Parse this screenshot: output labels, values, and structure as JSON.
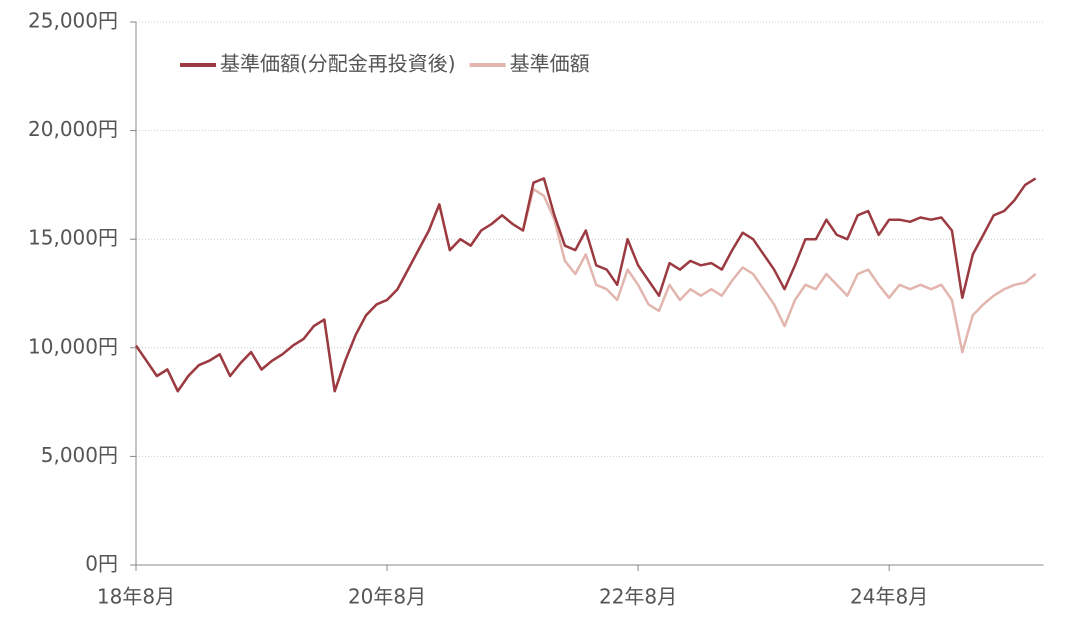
{
  "chart_data": {
    "type": "line",
    "categories": [
      "18年8月",
      null,
      null,
      null,
      null,
      null,
      null,
      null,
      null,
      null,
      null,
      null,
      null,
      null,
      null,
      null,
      null,
      null,
      null,
      null,
      null,
      null,
      null,
      null,
      "20年8月",
      null,
      null,
      null,
      null,
      null,
      null,
      null,
      null,
      null,
      null,
      null,
      null,
      null,
      null,
      null,
      null,
      null,
      null,
      null,
      null,
      null,
      null,
      null,
      "22年8月",
      null,
      null,
      null,
      null,
      null,
      null,
      null,
      null,
      null,
      null,
      null,
      null,
      null,
      null,
      null,
      null,
      null,
      null,
      null,
      null,
      null,
      null,
      null,
      "24年8月",
      null,
      null,
      null,
      null,
      null,
      null,
      null,
      null,
      null,
      null,
      null,
      null,
      null,
      null
    ],
    "series": [
      {
        "name": "基準価額(分配金再投資後)",
        "color": "#9b3a40",
        "values": [
          10100,
          9400,
          8700,
          9000,
          8000,
          8700,
          9200,
          9400,
          9700,
          8700,
          9300,
          9800,
          9000,
          9400,
          9700,
          10100,
          10400,
          11000,
          11300,
          8000,
          9400,
          10600,
          11500,
          12000,
          12200,
          12700,
          13600,
          14500,
          15400,
          16600,
          14500,
          15000,
          14700,
          15400,
          15700,
          16100,
          15700,
          15400,
          17600,
          17800,
          16100,
          14700,
          14500,
          15400,
          13800,
          13600,
          12900,
          15000,
          13800,
          13100,
          12400,
          13900,
          13600,
          14000,
          13800,
          13900,
          13600,
          14500,
          15300,
          15000,
          14300,
          13600,
          12700,
          13800,
          15000,
          15000,
          15900,
          15200,
          15000,
          16100,
          16300,
          15200,
          15900,
          15900,
          15800,
          16000,
          15900,
          16000,
          15400,
          12300,
          14300,
          15200,
          16100,
          16300,
          16800,
          17500,
          17800
        ]
      },
      {
        "name": "基準価額",
        "color": "#e2b6ae",
        "values": [
          10100,
          9400,
          8700,
          9000,
          8000,
          8700,
          9200,
          9400,
          9700,
          8700,
          9300,
          9800,
          9000,
          9400,
          9700,
          10100,
          10400,
          11000,
          11300,
          8000,
          9400,
          10600,
          11500,
          12000,
          12200,
          12700,
          13600,
          14500,
          15400,
          16600,
          14500,
          15000,
          14700,
          15400,
          15700,
          16100,
          15700,
          15400,
          17300,
          17000,
          15900,
          14000,
          13400,
          14300,
          12900,
          12700,
          12200,
          13600,
          12900,
          12000,
          11700,
          12900,
          12200,
          12700,
          12400,
          12700,
          12400,
          13100,
          13700,
          13400,
          12700,
          12000,
          11000,
          12200,
          12900,
          12700,
          13400,
          12900,
          12400,
          13400,
          13600,
          12900,
          12300,
          12900,
          12700,
          12900,
          12700,
          12900,
          12200,
          9800,
          11500,
          12000,
          12400,
          12700,
          12900,
          13000,
          13400
        ]
      }
    ],
    "ylim": [
      0,
      25000
    ],
    "yticks": [
      {
        "value": 0,
        "label": "0円"
      },
      {
        "value": 5000,
        "label": "5,000円"
      },
      {
        "value": 10000,
        "label": "10,000円"
      },
      {
        "value": 15000,
        "label": "15,000円"
      },
      {
        "value": 20000,
        "label": "20,000円"
      },
      {
        "value": 25000,
        "label": "25,000円"
      }
    ],
    "grid": true,
    "legend": "top-left"
  }
}
